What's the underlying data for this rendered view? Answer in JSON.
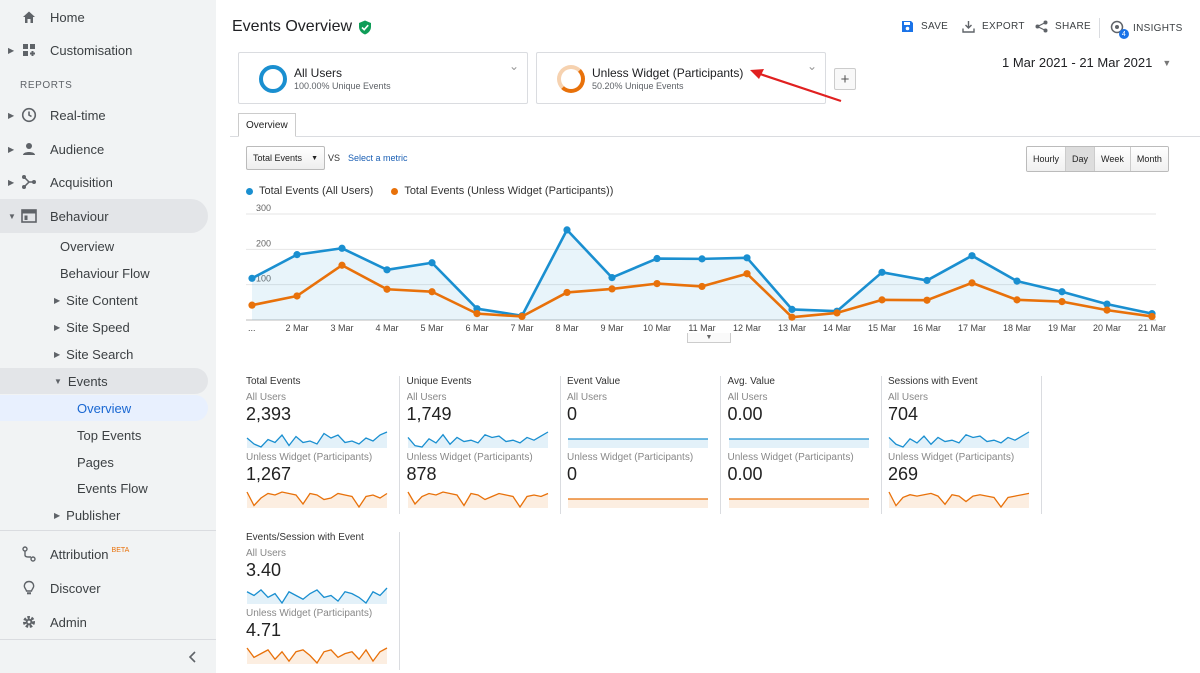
{
  "sidebar": {
    "home": "Home",
    "customisation": "Customisation",
    "reports_header": "REPORTS",
    "realtime": "Real-time",
    "audience": "Audience",
    "acquisition": "Acquisition",
    "behaviour": "Behaviour",
    "behaviour_overview": "Overview",
    "behaviour_flow": "Behaviour Flow",
    "site_content": "Site Content",
    "site_speed": "Site Speed",
    "site_search": "Site Search",
    "events": "Events",
    "events_overview": "Overview",
    "top_events": "Top Events",
    "pages": "Pages",
    "events_flow": "Events Flow",
    "publisher": "Publisher",
    "attribution": "Attribution",
    "attribution_badge": "BETA",
    "discover": "Discover",
    "admin": "Admin",
    "collapse_icon": "chevron-left-icon"
  },
  "header": {
    "title": "Events Overview",
    "save": "SAVE",
    "export": "EXPORT",
    "share": "SHARE",
    "insights": "INSIGHTS",
    "insights_count": "4"
  },
  "segments": [
    {
      "name": "All Users",
      "sub": "100.00% Unique Events",
      "color": "#1a8fd0"
    },
    {
      "name": "Unless Widget (Participants)",
      "sub": "50.20% Unique Events",
      "color": "#e8710a"
    }
  ],
  "date_range": "1 Mar 2021 - 21 Mar 2021",
  "tab": "Overview",
  "metric_select": "Total Events",
  "vs": "VS",
  "select_metric": "Select a metric",
  "granularity": [
    "Hourly",
    "Day",
    "Week",
    "Month"
  ],
  "granularity_selected": "Day",
  "colors": {
    "blue": "#1a8fd0",
    "orange": "#e8710a",
    "accent": "#1a73e8",
    "verified": "#0f9d58",
    "arrow": "#e02020"
  },
  "chart_data": {
    "type": "line",
    "x": [
      "...",
      "2 Mar",
      "3 Mar",
      "4 Mar",
      "5 Mar",
      "6 Mar",
      "7 Mar",
      "8 Mar",
      "9 Mar",
      "10 Mar",
      "11 Mar",
      "12 Mar",
      "13 Mar",
      "14 Mar",
      "15 Mar",
      "16 Mar",
      "17 Mar",
      "18 Mar",
      "19 Mar",
      "20 Mar",
      "21 Mar"
    ],
    "yticks": [
      100,
      200,
      300
    ],
    "ylim": [
      0,
      300
    ],
    "grid": true,
    "series": [
      {
        "name": "Total Events (All Users)",
        "color": "#1a8fd0",
        "fill": true,
        "values": [
          118,
          185,
          203,
          142,
          162,
          32,
          12,
          255,
          120,
          174,
          173,
          176,
          30,
          25,
          135,
          112,
          182,
          110,
          80,
          45,
          18
        ]
      },
      {
        "name": "Total Events (Unless Widget (Participants))",
        "color": "#e8710a",
        "fill": false,
        "values": [
          42,
          68,
          155,
          87,
          80,
          18,
          10,
          78,
          88,
          103,
          95,
          131,
          8,
          20,
          57,
          56,
          105,
          57,
          52,
          28,
          10
        ]
      }
    ]
  },
  "scorecards": [
    {
      "title": "Total Events",
      "seg1": "All Users",
      "v1": "2,393",
      "seg2": "Unless Widget (Participants)",
      "v2": "1,267",
      "spark1": [
        12,
        8,
        6,
        11,
        9,
        14,
        7,
        13,
        9,
        10,
        8,
        15,
        12,
        14,
        9,
        10,
        8,
        12,
        10,
        14,
        16
      ],
      "spark2": [
        14,
        5,
        10,
        13,
        12,
        14,
        13,
        12,
        6,
        13,
        12,
        9,
        10,
        13,
        12,
        11,
        4,
        11,
        12,
        10,
        13
      ]
    },
    {
      "title": "Unique Events",
      "seg1": "All Users",
      "v1": "1,749",
      "seg2": "Unless Widget (Participants)",
      "v2": "878",
      "spark1": [
        12,
        6,
        5,
        11,
        8,
        14,
        7,
        12,
        9,
        10,
        8,
        14,
        12,
        13,
        9,
        10,
        8,
        12,
        10,
        13,
        16
      ],
      "spark2": [
        14,
        6,
        11,
        13,
        12,
        14,
        13,
        12,
        5,
        13,
        12,
        9,
        11,
        13,
        12,
        11,
        4,
        11,
        12,
        11,
        13
      ]
    },
    {
      "title": "Event Value",
      "seg1": "All Users",
      "v1": "0",
      "seg2": "Unless Widget (Participants)",
      "v2": "0",
      "spark1": [
        10,
        10,
        10,
        10,
        10,
        10,
        10,
        10,
        10,
        10,
        10,
        10,
        10,
        10,
        10,
        10,
        10,
        10,
        10,
        10,
        10
      ],
      "spark2": [
        10,
        10,
        10,
        10,
        10,
        10,
        10,
        10,
        10,
        10,
        10,
        10,
        10,
        10,
        10,
        10,
        10,
        10,
        10,
        10,
        10
      ]
    },
    {
      "title": "Avg. Value",
      "seg1": "All Users",
      "v1": "0.00",
      "seg2": "Unless Widget (Participants)",
      "v2": "0.00",
      "spark1": [
        10,
        10,
        10,
        10,
        10,
        10,
        10,
        10,
        10,
        10,
        10,
        10,
        10,
        10,
        10,
        10,
        10,
        10,
        10,
        10,
        10
      ],
      "spark2": [
        10,
        10,
        10,
        10,
        10,
        10,
        10,
        10,
        10,
        10,
        10,
        10,
        10,
        10,
        10,
        10,
        10,
        10,
        10,
        10,
        10
      ]
    },
    {
      "title": "Sessions with Event",
      "seg1": "All Users",
      "v1": "704",
      "seg2": "Unless Widget (Participants)",
      "v2": "269",
      "spark1": [
        12,
        7,
        5,
        11,
        8,
        13,
        7,
        12,
        9,
        10,
        8,
        14,
        12,
        13,
        9,
        10,
        8,
        12,
        10,
        13,
        16
      ],
      "spark2": [
        15,
        5,
        11,
        13,
        12,
        13,
        14,
        12,
        6,
        13,
        12,
        8,
        12,
        13,
        12,
        11,
        4,
        11,
        12,
        13,
        14
      ]
    },
    {
      "title": "Events/Session with Event",
      "seg1": "All Users",
      "v1": "3.40",
      "seg2": "Unless Widget (Participants)",
      "v2": "4.71",
      "spark1": [
        12,
        10,
        13,
        9,
        11,
        6,
        12,
        10,
        8,
        11,
        13,
        9,
        10,
        7,
        12,
        11,
        9,
        6,
        12,
        10,
        14
      ],
      "spark2": [
        14,
        9,
        11,
        13,
        8,
        12,
        7,
        12,
        13,
        10,
        6,
        12,
        13,
        9,
        11,
        12,
        8,
        13,
        7,
        12,
        14
      ]
    }
  ]
}
